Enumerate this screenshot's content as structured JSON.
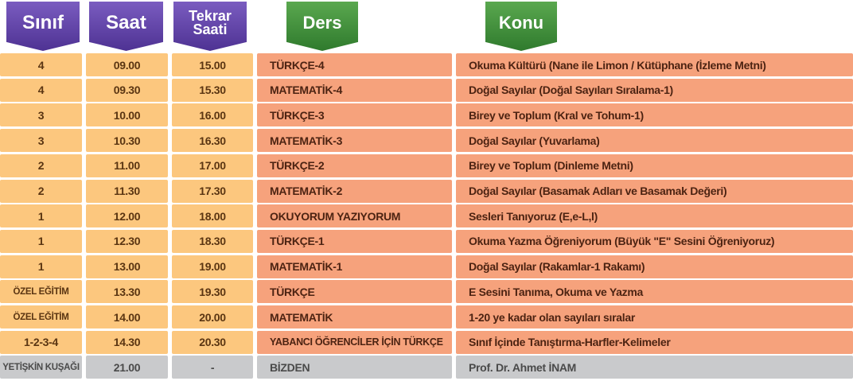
{
  "header": [
    "Sınıf",
    "Saat",
    "Tekrar Saati",
    "Ders",
    "Konu"
  ],
  "table": {
    "rows": [
      [
        "4",
        "09.00",
        "15.00",
        "TÜRKÇE-4",
        "Okuma Kültürü (Nane ile Limon / Kütüphane (İzleme Metni)"
      ],
      [
        "4",
        "09.30",
        "15.30",
        "MATEMATİK-4",
        "Doğal Sayılar (Doğal Sayıları Sıralama-1)"
      ],
      [
        "3",
        "10.00",
        "16.00",
        "TÜRKÇE-3",
        "Birey ve Toplum (Kral ve Tohum-1)"
      ],
      [
        "3",
        "10.30",
        "16.30",
        "MATEMATİK-3",
        "Doğal Sayılar (Yuvarlama)"
      ],
      [
        "2",
        "11.00",
        "17.00",
        "TÜRKÇE-2",
        "Birey ve Toplum (Dinleme Metni)"
      ],
      [
        "2",
        "11.30",
        "17.30",
        "MATEMATİK-2",
        "Doğal Sayılar (Basamak Adları ve Basamak Değeri)"
      ],
      [
        "1",
        "12.00",
        "18.00",
        "OKUYORUM YAZIYORUM",
        "Sesleri Tanıyoruz (E,e-L,l)"
      ],
      [
        "1",
        "12.30",
        "18.30",
        "TÜRKÇE-1",
        "Okuma Yazma Öğreniyorum (Büyük \"E\" Sesini Öğreniyoruz)"
      ],
      [
        "1",
        "13.00",
        "19.00",
        "MATEMATİK-1",
        "Doğal Sayılar (Rakamlar-1 Rakamı)"
      ],
      [
        "ÖZEL EĞİTİM",
        "13.30",
        "19.30",
        "TÜRKÇE",
        "E Sesini Tanıma, Okuma ve Yazma"
      ],
      [
        "ÖZEL EĞİTİM",
        "14.00",
        "20.00",
        "MATEMATİK",
        "1-20 ye kadar olan sayıları sıralar"
      ],
      [
        "1-2-3-4",
        "14.30",
        "20.30",
        "YABANCI ÖĞRENCİLER İÇİN TÜRKÇE",
        "Sınıf İçinde Tanıştırma-Harfler-Kelimeler"
      ],
      [
        "YETİŞKİN KUŞAĞI",
        "21.00",
        "-",
        "BİZDEN",
        "Prof. Dr. Ahmet İNAM"
      ]
    ]
  }
}
